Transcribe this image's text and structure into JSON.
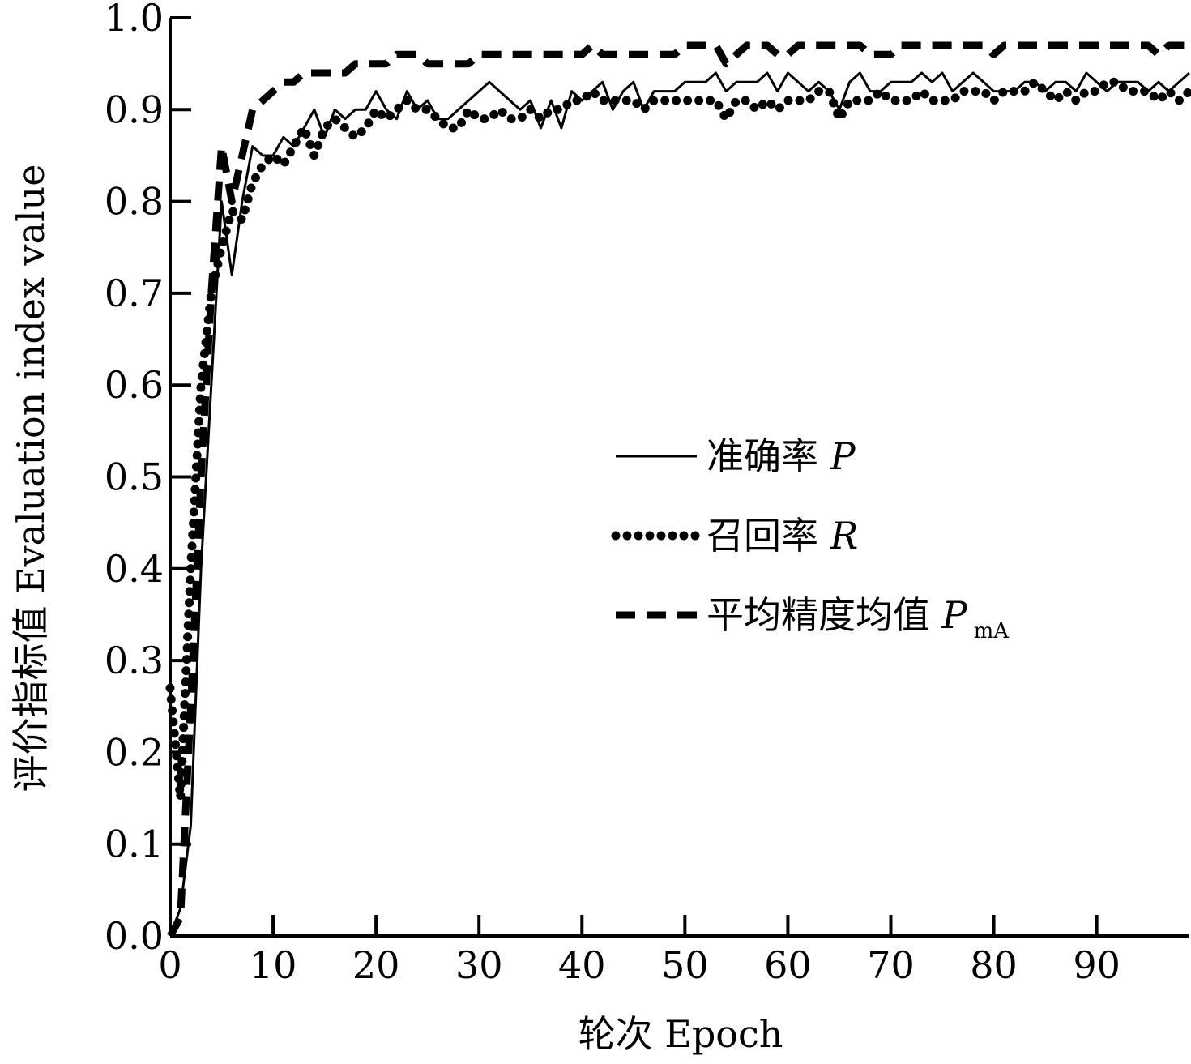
{
  "chart_data": {
    "type": "line",
    "xlabel": "轮次 Epoch",
    "ylabel": "评价指标值 Evaluation index value",
    "xlim": [
      0,
      99
    ],
    "ylim": [
      0,
      1.0
    ],
    "x_ticks": [
      0,
      10,
      20,
      30,
      40,
      50,
      60,
      70,
      80,
      90
    ],
    "x_tick_labels": [
      "0",
      "10",
      "20",
      "30",
      "40",
      "50",
      "60",
      "70",
      "80",
      "90"
    ],
    "y_ticks": [
      0.0,
      0.1,
      0.2,
      0.3,
      0.4,
      0.5,
      0.6,
      0.7,
      0.8,
      0.9,
      1.0
    ],
    "y_tick_labels": [
      "0.0",
      "0.1",
      "0.2",
      "0.3",
      "0.4",
      "0.5",
      "0.6",
      "0.7",
      "0.8",
      "0.9",
      "1.0"
    ],
    "legend_position": "center-right",
    "grid": false,
    "series": [
      {
        "name": "准确率 P",
        "legend_main": "准确率 ",
        "legend_symbol": "P",
        "legend_sub": "",
        "style": "solid",
        "x": [
          0,
          1,
          2,
          3,
          4,
          5,
          6,
          7,
          8,
          9,
          10,
          11,
          12,
          13,
          14,
          15,
          16,
          17,
          18,
          19,
          20,
          21,
          22,
          23,
          24,
          25,
          26,
          27,
          28,
          29,
          30,
          31,
          32,
          33,
          34,
          35,
          36,
          37,
          38,
          39,
          40,
          41,
          42,
          43,
          44,
          45,
          46,
          47,
          48,
          49,
          50,
          51,
          52,
          53,
          54,
          55,
          56,
          57,
          58,
          59,
          60,
          61,
          62,
          63,
          64,
          65,
          66,
          67,
          68,
          69,
          70,
          71,
          72,
          73,
          74,
          75,
          76,
          77,
          78,
          79,
          80,
          81,
          82,
          83,
          84,
          85,
          86,
          87,
          88,
          89,
          90,
          91,
          92,
          93,
          94,
          95,
          96,
          97,
          98,
          99
        ],
        "values": [
          0.0,
          0.03,
          0.12,
          0.4,
          0.6,
          0.8,
          0.72,
          0.8,
          0.86,
          0.85,
          0.85,
          0.87,
          0.86,
          0.88,
          0.9,
          0.87,
          0.9,
          0.89,
          0.9,
          0.9,
          0.92,
          0.9,
          0.89,
          0.92,
          0.9,
          0.91,
          0.89,
          0.89,
          0.9,
          0.91,
          0.92,
          0.93,
          0.92,
          0.91,
          0.9,
          0.91,
          0.88,
          0.91,
          0.88,
          0.92,
          0.91,
          0.92,
          0.93,
          0.9,
          0.92,
          0.93,
          0.9,
          0.92,
          0.92,
          0.92,
          0.93,
          0.93,
          0.93,
          0.94,
          0.92,
          0.93,
          0.93,
          0.93,
          0.94,
          0.92,
          0.94,
          0.93,
          0.92,
          0.93,
          0.92,
          0.9,
          0.93,
          0.94,
          0.92,
          0.92,
          0.93,
          0.93,
          0.93,
          0.94,
          0.93,
          0.94,
          0.92,
          0.93,
          0.94,
          0.93,
          0.92,
          0.92,
          0.92,
          0.93,
          0.93,
          0.92,
          0.93,
          0.93,
          0.92,
          0.94,
          0.93,
          0.92,
          0.93,
          0.93,
          0.93,
          0.92,
          0.93,
          0.92,
          0.93,
          0.94
        ]
      },
      {
        "name": "召回率 R",
        "legend_main": "召回率 ",
        "legend_symbol": "R",
        "legend_sub": "",
        "style": "dotted",
        "x": [
          0,
          1,
          2,
          3,
          4,
          5,
          6,
          7,
          8,
          9,
          10,
          11,
          12,
          13,
          14,
          15,
          16,
          17,
          18,
          19,
          20,
          21,
          22,
          23,
          24,
          25,
          26,
          27,
          28,
          29,
          30,
          31,
          32,
          33,
          34,
          35,
          36,
          37,
          38,
          39,
          40,
          41,
          42,
          43,
          44,
          45,
          46,
          47,
          48,
          49,
          50,
          51,
          52,
          53,
          54,
          55,
          56,
          57,
          58,
          59,
          60,
          61,
          62,
          63,
          64,
          65,
          66,
          67,
          68,
          69,
          70,
          71,
          72,
          73,
          74,
          75,
          76,
          77,
          78,
          79,
          80,
          81,
          82,
          83,
          84,
          85,
          86,
          87,
          88,
          89,
          90,
          91,
          92,
          93,
          94,
          95,
          96,
          97,
          98,
          99
        ],
        "values": [
          0.27,
          0.15,
          0.4,
          0.6,
          0.7,
          0.75,
          0.79,
          0.78,
          0.82,
          0.84,
          0.85,
          0.84,
          0.86,
          0.88,
          0.85,
          0.88,
          0.89,
          0.88,
          0.87,
          0.88,
          0.9,
          0.89,
          0.9,
          0.91,
          0.9,
          0.9,
          0.89,
          0.88,
          0.88,
          0.9,
          0.89,
          0.89,
          0.9,
          0.89,
          0.89,
          0.9,
          0.89,
          0.9,
          0.9,
          0.91,
          0.91,
          0.92,
          0.91,
          0.91,
          0.91,
          0.91,
          0.9,
          0.91,
          0.91,
          0.91,
          0.91,
          0.91,
          0.91,
          0.91,
          0.89,
          0.91,
          0.91,
          0.9,
          0.91,
          0.9,
          0.91,
          0.91,
          0.91,
          0.92,
          0.92,
          0.89,
          0.91,
          0.91,
          0.91,
          0.92,
          0.91,
          0.91,
          0.91,
          0.92,
          0.91,
          0.91,
          0.91,
          0.92,
          0.92,
          0.92,
          0.91,
          0.92,
          0.92,
          0.92,
          0.93,
          0.92,
          0.91,
          0.92,
          0.91,
          0.92,
          0.92,
          0.93,
          0.93,
          0.92,
          0.92,
          0.92,
          0.91,
          0.92,
          0.91,
          0.92
        ]
      },
      {
        "name": "平均精度均值 PmA",
        "legend_main": "平均精度均值 ",
        "legend_symbol": "P",
        "legend_sub": "mA",
        "style": "dashed",
        "x": [
          0,
          1,
          2,
          3,
          4,
          5,
          6,
          7,
          8,
          9,
          10,
          11,
          12,
          13,
          14,
          15,
          16,
          17,
          18,
          19,
          20,
          21,
          22,
          23,
          24,
          25,
          26,
          27,
          28,
          29,
          30,
          31,
          32,
          33,
          34,
          35,
          36,
          37,
          38,
          39,
          40,
          41,
          42,
          43,
          44,
          45,
          46,
          47,
          48,
          49,
          50,
          51,
          52,
          53,
          54,
          55,
          56,
          57,
          58,
          59,
          60,
          61,
          62,
          63,
          64,
          65,
          66,
          67,
          68,
          69,
          70,
          71,
          72,
          73,
          74,
          75,
          76,
          77,
          78,
          79,
          80,
          81,
          82,
          83,
          84,
          85,
          86,
          87,
          88,
          89,
          90,
          91,
          92,
          93,
          94,
          95,
          96,
          97,
          98,
          99
        ],
        "values": [
          0.0,
          0.02,
          0.25,
          0.5,
          0.7,
          0.86,
          0.8,
          0.85,
          0.9,
          0.91,
          0.92,
          0.93,
          0.93,
          0.94,
          0.94,
          0.94,
          0.94,
          0.94,
          0.95,
          0.95,
          0.95,
          0.95,
          0.96,
          0.96,
          0.96,
          0.95,
          0.95,
          0.95,
          0.95,
          0.95,
          0.96,
          0.96,
          0.96,
          0.96,
          0.96,
          0.96,
          0.96,
          0.96,
          0.96,
          0.96,
          0.96,
          0.97,
          0.96,
          0.96,
          0.96,
          0.96,
          0.96,
          0.96,
          0.96,
          0.96,
          0.97,
          0.97,
          0.97,
          0.97,
          0.95,
          0.96,
          0.97,
          0.97,
          0.97,
          0.96,
          0.96,
          0.97,
          0.97,
          0.97,
          0.97,
          0.97,
          0.97,
          0.97,
          0.96,
          0.96,
          0.96,
          0.97,
          0.97,
          0.97,
          0.97,
          0.97,
          0.97,
          0.97,
          0.97,
          0.97,
          0.96,
          0.97,
          0.97,
          0.97,
          0.97,
          0.97,
          0.97,
          0.97,
          0.97,
          0.97,
          0.97,
          0.97,
          0.97,
          0.97,
          0.97,
          0.97,
          0.96,
          0.97,
          0.97,
          0.97
        ]
      }
    ]
  }
}
